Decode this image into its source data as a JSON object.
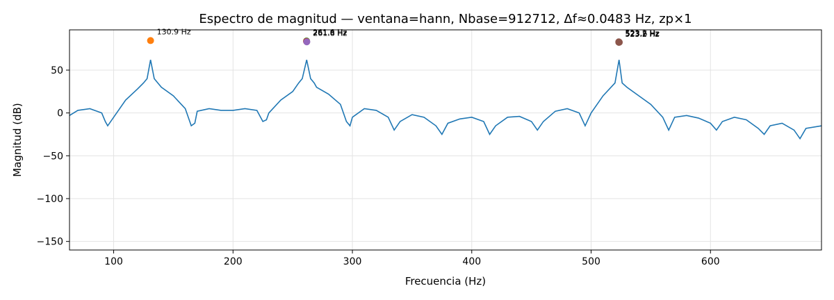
{
  "chart_data": {
    "type": "line",
    "title": "Espectro de magnitud — ventana=hann, Nbase=912712, Δf≈0.0483 Hz, zp×1",
    "xlabel": "Frecuencia (Hz)",
    "ylabel": "Magnitud (dB)",
    "xlim": [
      63,
      693
    ],
    "ylim": [
      -160,
      97
    ],
    "xticks": [
      100,
      200,
      300,
      400,
      500,
      600
    ],
    "yticks": [
      50,
      0,
      -50,
      -100,
      -150
    ],
    "grid": true,
    "colors": {
      "spectrum": "#1f77b4",
      "grid": "#e3e3e3"
    },
    "peaks": [
      {
        "label": "130.9 Hz",
        "x": 130.9,
        "y": 84.5,
        "color": "#ff7f0e"
      },
      {
        "label": "261.6 Hz",
        "x": 261.6,
        "y": 84.0,
        "color": "#2ca02c"
      },
      {
        "label": "261.6 Hz",
        "x": 261.6,
        "y": 83.5,
        "color": "#d62728"
      },
      {
        "label": "261.8 Hz",
        "x": 261.8,
        "y": 83.0,
        "color": "#9467bd"
      },
      {
        "label": "523.2 Hz",
        "x": 523.2,
        "y": 83.0,
        "color": "#8c564b"
      },
      {
        "label": "523.2 Hz",
        "x": 523.2,
        "y": 82.5,
        "color": "#8c564b"
      },
      {
        "label": "523.6 Hz",
        "x": 523.6,
        "y": 82.5,
        "color": "#8c564b"
      }
    ],
    "series": [
      {
        "x": [
          63,
          70,
          80,
          90,
          93,
          95,
          100,
          110,
          120,
          125,
          128,
          130.9,
          134,
          137,
          140,
          150,
          160,
          165,
          168,
          170,
          180,
          190,
          200,
          210,
          220,
          225,
          228,
          230,
          240,
          250,
          255,
          258,
          261.7,
          265,
          268,
          270,
          280,
          290,
          295,
          298,
          300,
          310,
          320,
          330,
          335,
          340,
          350,
          360,
          370,
          375,
          380,
          390,
          400,
          410,
          415,
          420,
          430,
          440,
          450,
          455,
          460,
          470,
          480,
          490,
          495,
          500,
          510,
          520,
          523.4,
          526,
          530,
          540,
          550,
          560,
          565,
          570,
          580,
          590,
          600,
          605,
          610,
          620,
          630,
          640,
          645,
          650,
          660,
          670,
          675,
          680,
          693
        ],
        "y": [
          -3,
          3,
          5,
          0,
          -10,
          -15,
          -5,
          15,
          28,
          35,
          40,
          62,
          40,
          35,
          30,
          20,
          5,
          -15,
          -12,
          2,
          5,
          3,
          3,
          5,
          3,
          -10,
          -8,
          0,
          15,
          25,
          35,
          40,
          62,
          40,
          35,
          30,
          22,
          10,
          -10,
          -15,
          -5,
          5,
          3,
          -5,
          -20,
          -10,
          -2,
          -5,
          -15,
          -25,
          -12,
          -7,
          -5,
          -10,
          -25,
          -15,
          -5,
          -4,
          -10,
          -20,
          -10,
          2,
          5,
          0,
          -15,
          0,
          20,
          35,
          62,
          35,
          30,
          20,
          10,
          -5,
          -20,
          -5,
          -3,
          -6,
          -12,
          -20,
          -10,
          -5,
          -8,
          -18,
          -25,
          -15,
          -12,
          -20,
          -30,
          -18,
          -15
        ]
      }
    ]
  }
}
